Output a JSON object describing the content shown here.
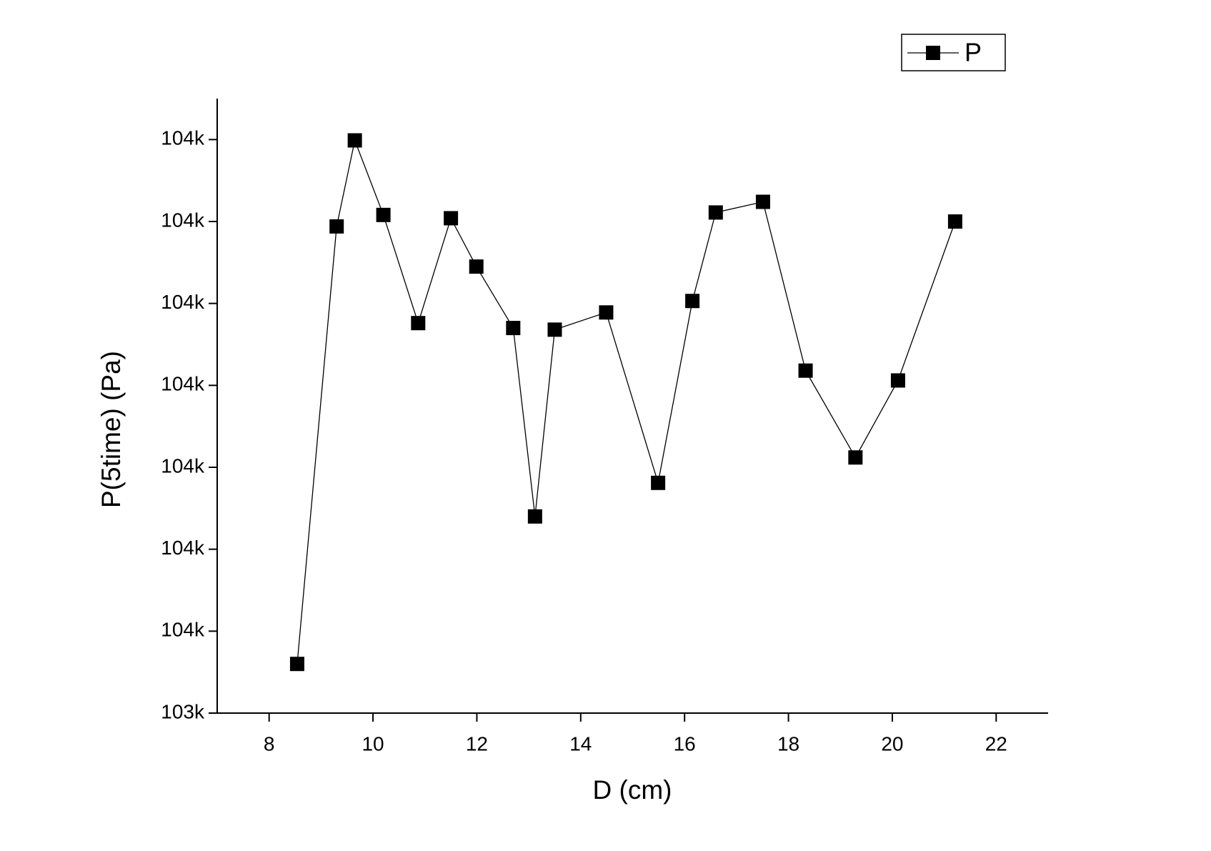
{
  "chart_data": {
    "type": "line",
    "x_label": "D (cm)",
    "y_label": "P(5time) (Pa)",
    "x": [
      8.54,
      9.3,
      9.65,
      10.2,
      10.87,
      11.5,
      11.99,
      12.7,
      13.12,
      13.5,
      14.49,
      15.49,
      16.15,
      16.6,
      17.51,
      18.33,
      19.29,
      20.11,
      21.21
    ],
    "series": [
      {
        "name": "P",
        "color": "#000000",
        "values": [
          103460,
          103994,
          104099,
          104008,
          103876,
          104004,
          103945,
          103870,
          103640,
          103868,
          103889,
          103681,
          103903,
          104011,
          104024,
          103818,
          103712,
          103806,
          104000
        ]
      }
    ],
    "xlim": [
      7,
      23
    ],
    "xticks": [
      8,
      10,
      12,
      14,
      16,
      18,
      20,
      22
    ],
    "ylim": [
      103400,
      104150
    ],
    "yticks": [
      {
        "value": 103400,
        "label": "103k"
      },
      {
        "value": 103500,
        "label": "104k"
      },
      {
        "value": 103600,
        "label": "104k"
      },
      {
        "value": 103700,
        "label": "104k"
      },
      {
        "value": 103800,
        "label": "104k"
      },
      {
        "value": 103900,
        "label": "104k"
      },
      {
        "value": 104000,
        "label": "104k"
      },
      {
        "value": 104100,
        "label": "104k"
      }
    ],
    "legend": "top-right",
    "grid": false
  }
}
